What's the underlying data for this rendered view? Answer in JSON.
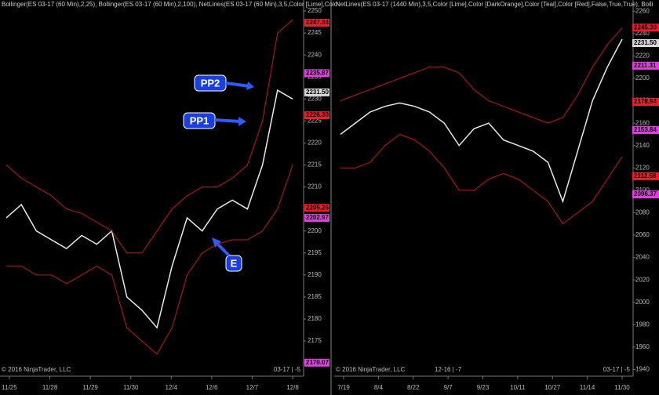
{
  "chart_data": [
    {
      "type": "line",
      "title": "Bollinger(ES 03-17 (60 Min),2,25), Bollinger(ES 03-17 (60 Min),2,100), NetLines(ES 03-17 (60 Min),3,5,Color [Lime],Colo",
      "xlabels": [
        "11/25",
        "11/28",
        "11/29",
        "11/30",
        "12/4",
        "12/6",
        "12/7",
        "12/8"
      ],
      "series": [
        {
          "name": "close",
          "color": "#e8e8e8",
          "values": [
            2203,
            2206,
            2200,
            2198,
            2196,
            2199,
            2197,
            2200,
            2185,
            2182,
            2178,
            2192,
            2203,
            2200,
            2205,
            2207,
            2205,
            2215,
            2232,
            2230
          ]
        },
        {
          "name": "upper",
          "color": "#c81818",
          "values": [
            2215,
            2212,
            2210,
            2208,
            2205,
            2204,
            2202,
            2200,
            2195,
            2195,
            2200,
            2205,
            2208,
            2210,
            2210,
            2212,
            2215,
            2225,
            2245,
            2248
          ]
        },
        {
          "name": "lower",
          "color": "#c81818",
          "values": [
            2192,
            2192,
            2190,
            2190,
            2188,
            2190,
            2192,
            2190,
            2178,
            2175,
            2172,
            2178,
            2190,
            2195,
            2197,
            2198,
            2198,
            2200,
            2205,
            2215
          ]
        }
      ],
      "ylim": [
        2167,
        2252.5
      ],
      "yticks": [
        2170,
        2175,
        2180,
        2185,
        2190,
        2195,
        2200,
        2205,
        2210,
        2215,
        2220,
        2225,
        2230,
        2235,
        2240,
        2245,
        2250
      ],
      "price_tags": [
        {
          "value": 2247.34,
          "label": "2247.34",
          "color": "#e8202a"
        },
        {
          "value": 2235.87,
          "label": "2235.87",
          "color": "#e040e0"
        },
        {
          "value": 2231.5,
          "label": "2231.50",
          "color": "#d8d8d8"
        },
        {
          "value": 2226.3,
          "label": "2226.30",
          "color": "#e8202a"
        },
        {
          "value": 2205.26,
          "label": "2205.26",
          "color": "#e8202a"
        },
        {
          "value": 2202.97,
          "label": "2202.97",
          "color": "#e040e0"
        },
        {
          "value": 2170.07,
          "label": "2170.07",
          "color": "#e040e0"
        }
      ],
      "annotations": [
        "PP2",
        "PP1",
        "E"
      ],
      "footer_left": "© 2016 NinjaTrader, LLC",
      "footer_right": "03-17 | -5"
    },
    {
      "type": "line",
      "title": "NetLines(ES 03-17 (1440 Min),3,5,Color [Lime],Color [DarkOrange],Color [Teal],Color [Red],False,True,True), Bolli",
      "xlabels": [
        "7/19",
        "8/4",
        "8/22",
        "9/7",
        "9/23",
        "10/11",
        "10/27",
        "11/14",
        "11/30"
      ],
      "series": [
        {
          "name": "close",
          "color": "#e8e8e8",
          "values": [
            2150,
            2160,
            2170,
            2175,
            2178,
            2175,
            2170,
            2160,
            2140,
            2155,
            2160,
            2145,
            2140,
            2135,
            2125,
            2090,
            2135,
            2180,
            2210,
            2235
          ]
        },
        {
          "name": "upper",
          "color": "#c81818",
          "values": [
            2180,
            2185,
            2190,
            2195,
            2200,
            2205,
            2210,
            2210,
            2205,
            2190,
            2180,
            2175,
            2170,
            2165,
            2160,
            2165,
            2185,
            2210,
            2230,
            2245
          ]
        },
        {
          "name": "lower",
          "color": "#c81818",
          "values": [
            2120,
            2120,
            2125,
            2140,
            2150,
            2145,
            2135,
            2120,
            2100,
            2100,
            2110,
            2115,
            2110,
            2100,
            2090,
            2070,
            2080,
            2090,
            2110,
            2130
          ]
        }
      ],
      "ylim": [
        1934,
        2270
      ],
      "yticks": [
        1940,
        1960,
        1980,
        2000,
        2020,
        2040,
        2060,
        2080,
        2100,
        2120,
        2140,
        2160,
        2180,
        2200,
        2220,
        2240,
        2260
      ],
      "price_tags": [
        {
          "value": 2245.3,
          "label": "2245.30",
          "color": "#e8202a"
        },
        {
          "value": 2231.5,
          "label": "2231.50",
          "color": "#d8d8d8"
        },
        {
          "value": 2211.31,
          "label": "2211.31",
          "color": "#e040e0"
        },
        {
          "value": 2178.94,
          "label": "2178.94",
          "color": "#e8202a"
        },
        {
          "value": 2153.84,
          "label": "2153.84",
          "color": "#e040e0"
        },
        {
          "value": 2112.58,
          "label": "2112.58",
          "color": "#e8202a"
        },
        {
          "value": 2096.37,
          "label": "2096.37",
          "color": "#e040e0"
        }
      ],
      "session_label": "12-16 | -7",
      "footer_left": "© 2016 NinjaTrader, LLC",
      "footer_right": "03-17 | -5"
    }
  ]
}
